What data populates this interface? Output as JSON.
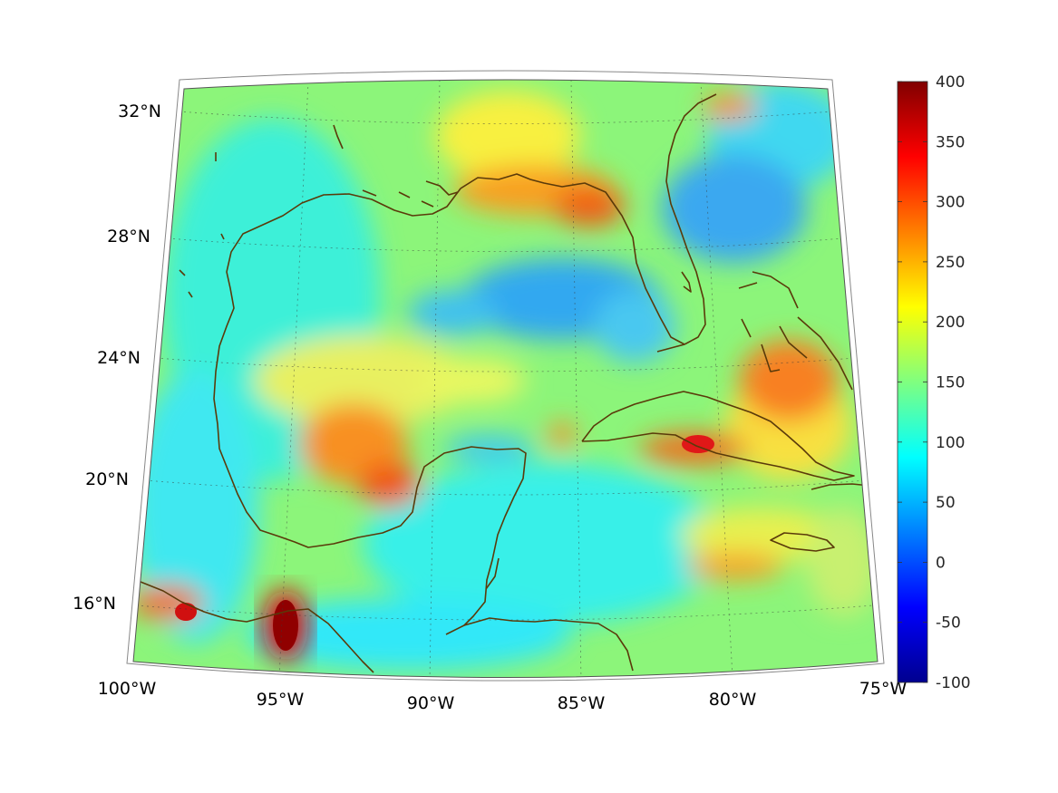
{
  "map": {
    "projection": "conic",
    "lon_range": [
      -100,
      -75
    ],
    "lat_range": [
      14,
      33
    ],
    "lon_tick_labels": [
      "100°W",
      "95°W",
      "90°W",
      "85°W",
      "80°W",
      "75°W"
    ],
    "lat_tick_labels": [
      "16°N",
      "20°N",
      "24°N",
      "28°N",
      "32°N"
    ],
    "gridlines": true,
    "coastline_color": "#5a3a0a"
  },
  "colorbar": {
    "colormap": "jet",
    "range": [
      -100,
      400
    ],
    "ticks": [
      "400",
      "350",
      "300",
      "250",
      "200",
      "150",
      "100",
      "50",
      "0",
      "-50",
      "-100"
    ]
  }
}
